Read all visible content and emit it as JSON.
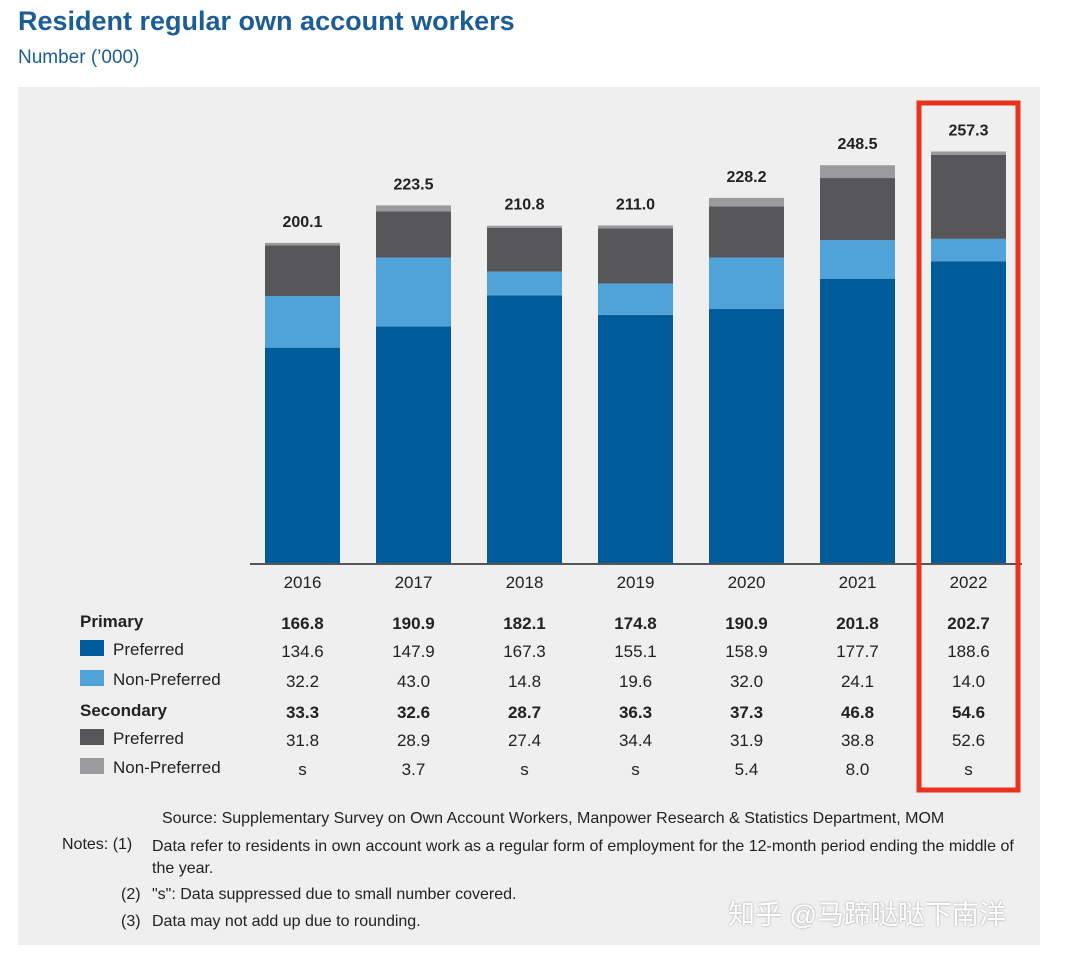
{
  "title": "Resident regular own account workers",
  "subtitle": "Number (’000)",
  "chart_data": {
    "type": "stacked-bar",
    "title": "Resident regular own account workers",
    "ylabel": "Number (’000)",
    "categories": [
      "2016",
      "2017",
      "2018",
      "2019",
      "2020",
      "2021",
      "2022"
    ],
    "totals": [
      "200.1",
      "223.5",
      "210.8",
      "211.0",
      "228.2",
      "248.5",
      "257.3"
    ],
    "series": [
      {
        "name": "Primary Preferred",
        "color": "#005b9a",
        "values": [
          134.6,
          147.9,
          167.3,
          155.1,
          158.9,
          177.7,
          188.6
        ]
      },
      {
        "name": "Primary Non-Preferred",
        "color": "#4fa3d8",
        "values": [
          32.2,
          43.0,
          14.8,
          19.6,
          32.0,
          24.1,
          14.0
        ]
      },
      {
        "name": "Secondary Preferred",
        "color": "#575759",
        "values": [
          31.8,
          28.9,
          27.4,
          34.4,
          31.9,
          38.8,
          52.6
        ]
      },
      {
        "name": "Secondary Non-Preferred",
        "color": "#9b9b9d",
        "values": [
          1.5,
          3.7,
          1.3,
          1.9,
          5.4,
          8.0,
          2.0
        ]
      }
    ],
    "highlight_category": "2022",
    "highlight_color": "#e8321e",
    "table": {
      "rows": [
        {
          "label": "Primary",
          "bold": true,
          "swatch": null,
          "values": [
            "166.8",
            "190.9",
            "182.1",
            "174.8",
            "190.9",
            "201.8",
            "202.7"
          ]
        },
        {
          "label": "Preferred",
          "bold": false,
          "swatch": "#005b9a",
          "values": [
            "134.6",
            "147.9",
            "167.3",
            "155.1",
            "158.9",
            "177.7",
            "188.6"
          ]
        },
        {
          "label": "Non-Preferred",
          "bold": false,
          "swatch": "#4fa3d8",
          "values": [
            "32.2",
            "43.0",
            "14.8",
            "19.6",
            "32.0",
            "24.1",
            "14.0"
          ]
        },
        {
          "label": "Secondary",
          "bold": true,
          "swatch": null,
          "values": [
            "33.3",
            "32.6",
            "28.7",
            "36.3",
            "37.3",
            "46.8",
            "54.6"
          ]
        },
        {
          "label": "Preferred",
          "bold": false,
          "swatch": "#575759",
          "values": [
            "31.8",
            "28.9",
            "27.4",
            "34.4",
            "31.9",
            "38.8",
            "52.6"
          ]
        },
        {
          "label": "Non-Preferred",
          "bold": false,
          "swatch": "#9b9b9d",
          "values": [
            "s",
            "3.7",
            "s",
            "s",
            "5.4",
            "8.0",
            "s"
          ]
        }
      ]
    }
  },
  "source": "Source: Supplementary Survey on Own Account Workers, Manpower Research & Statistics Department, MOM",
  "notes": [
    {
      "num": "Notes: (1)",
      "text": "Data refer to residents in own account work as a regular form of employment for the 12-month period ending the middle of the year."
    },
    {
      "num": "(2)",
      "text": "\"s\": Data suppressed due to small number covered."
    },
    {
      "num": "(3)",
      "text": "Data may not add up due to rounding."
    }
  ],
  "watermark": "知乎 @马蹄哒哒下南洋"
}
